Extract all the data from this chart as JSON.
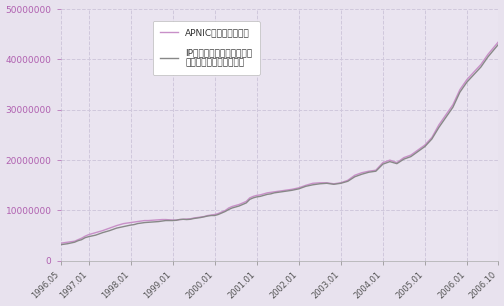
{
  "bg_color": "#e8e2ee",
  "plot_bg_color": "#eae4f0",
  "grid_color": "#d0c8dc",
  "line1_color": "#c890c8",
  "line2_color": "#888888",
  "line1_label": "APNICからの割り振り",
  "line2_label": "IPアドレス管理指定事業者\n（旧会員）への割り振り",
  "ylim": [
    0,
    50000000
  ],
  "yticks": [
    0,
    10000000,
    20000000,
    30000000,
    40000000,
    50000000
  ],
  "xtick_labels": [
    "1996.05",
    "1997.01",
    "1998.01",
    "1999.01",
    "2000.01",
    "2001.01",
    "2002.01",
    "2003.01",
    "2004.01",
    "2005.01",
    "2006.01",
    "2006.10"
  ],
  "x_positions": [
    0,
    8,
    20,
    32,
    44,
    56,
    68,
    80,
    92,
    104,
    116,
    125
  ],
  "line1_data_x": [
    0,
    2,
    4,
    5,
    6,
    7,
    8,
    10,
    12,
    14,
    16,
    18,
    20,
    21,
    22,
    23,
    24,
    25,
    26,
    27,
    28,
    29,
    30,
    31,
    32,
    33,
    34,
    35,
    36,
    37,
    38,
    39,
    40,
    41,
    42,
    43,
    44,
    45,
    46,
    47,
    48,
    49,
    50,
    51,
    52,
    53,
    54,
    55,
    56,
    57,
    58,
    59,
    60,
    61,
    62,
    63,
    64,
    65,
    66,
    68,
    70,
    72,
    74,
    76,
    78,
    80,
    82,
    84,
    86,
    88,
    90,
    92,
    94,
    96,
    98,
    100,
    102,
    104,
    106,
    108,
    110,
    112,
    114,
    116,
    118,
    120,
    122,
    125
  ],
  "line1_data_y": [
    3500000,
    3700000,
    3900000,
    4200000,
    4500000,
    4900000,
    5200000,
    5600000,
    6000000,
    6500000,
    7000000,
    7400000,
    7600000,
    7700000,
    7800000,
    7900000,
    8000000,
    8000000,
    8050000,
    8100000,
    8150000,
    8200000,
    8200000,
    8150000,
    8100000,
    8100000,
    8200000,
    8250000,
    8300000,
    8350000,
    8500000,
    8600000,
    8700000,
    8800000,
    9000000,
    9100000,
    9200000,
    9400000,
    9700000,
    10000000,
    10500000,
    10800000,
    11000000,
    11200000,
    11500000,
    11800000,
    12500000,
    12800000,
    13000000,
    13100000,
    13300000,
    13500000,
    13600000,
    13700000,
    13800000,
    13900000,
    14000000,
    14100000,
    14200000,
    14500000,
    15000000,
    15400000,
    15500000,
    15500000,
    15300000,
    15500000,
    16000000,
    17000000,
    17500000,
    17800000,
    18000000,
    19500000,
    20000000,
    19500000,
    20500000,
    21000000,
    22000000,
    23000000,
    24500000,
    27000000,
    29000000,
    31000000,
    34000000,
    36000000,
    37500000,
    39000000,
    41000000,
    43500000
  ],
  "line2_data_x": [
    0,
    2,
    4,
    5,
    6,
    7,
    8,
    10,
    12,
    14,
    16,
    18,
    20,
    21,
    22,
    23,
    24,
    25,
    26,
    27,
    28,
    29,
    30,
    31,
    32,
    33,
    34,
    35,
    36,
    37,
    38,
    39,
    40,
    41,
    42,
    43,
    44,
    45,
    46,
    47,
    48,
    49,
    50,
    51,
    52,
    53,
    54,
    55,
    56,
    57,
    58,
    59,
    60,
    61,
    62,
    63,
    64,
    65,
    66,
    68,
    70,
    72,
    74,
    76,
    78,
    80,
    82,
    84,
    86,
    88,
    90,
    92,
    94,
    96,
    98,
    100,
    102,
    104,
    106,
    108,
    110,
    112,
    114,
    116,
    118,
    120,
    122,
    125
  ],
  "line2_data_y": [
    3200000,
    3400000,
    3700000,
    4000000,
    4200000,
    4600000,
    4800000,
    5100000,
    5600000,
    6000000,
    6500000,
    6800000,
    7100000,
    7200000,
    7400000,
    7500000,
    7600000,
    7650000,
    7700000,
    7750000,
    7800000,
    7900000,
    8000000,
    8000000,
    8000000,
    8050000,
    8200000,
    8250000,
    8200000,
    8250000,
    8400000,
    8500000,
    8600000,
    8750000,
    8900000,
    9000000,
    9000000,
    9200000,
    9500000,
    9800000,
    10200000,
    10500000,
    10700000,
    10900000,
    11200000,
    11500000,
    12200000,
    12500000,
    12700000,
    12800000,
    13000000,
    13200000,
    13300000,
    13500000,
    13600000,
    13700000,
    13800000,
    13900000,
    14000000,
    14300000,
    14800000,
    15100000,
    15300000,
    15400000,
    15200000,
    15400000,
    15800000,
    16700000,
    17200000,
    17600000,
    17800000,
    19200000,
    19700000,
    19300000,
    20200000,
    20700000,
    21700000,
    22700000,
    24200000,
    26500000,
    28500000,
    30500000,
    33500000,
    35500000,
    37000000,
    38500000,
    40500000,
    43000000
  ]
}
